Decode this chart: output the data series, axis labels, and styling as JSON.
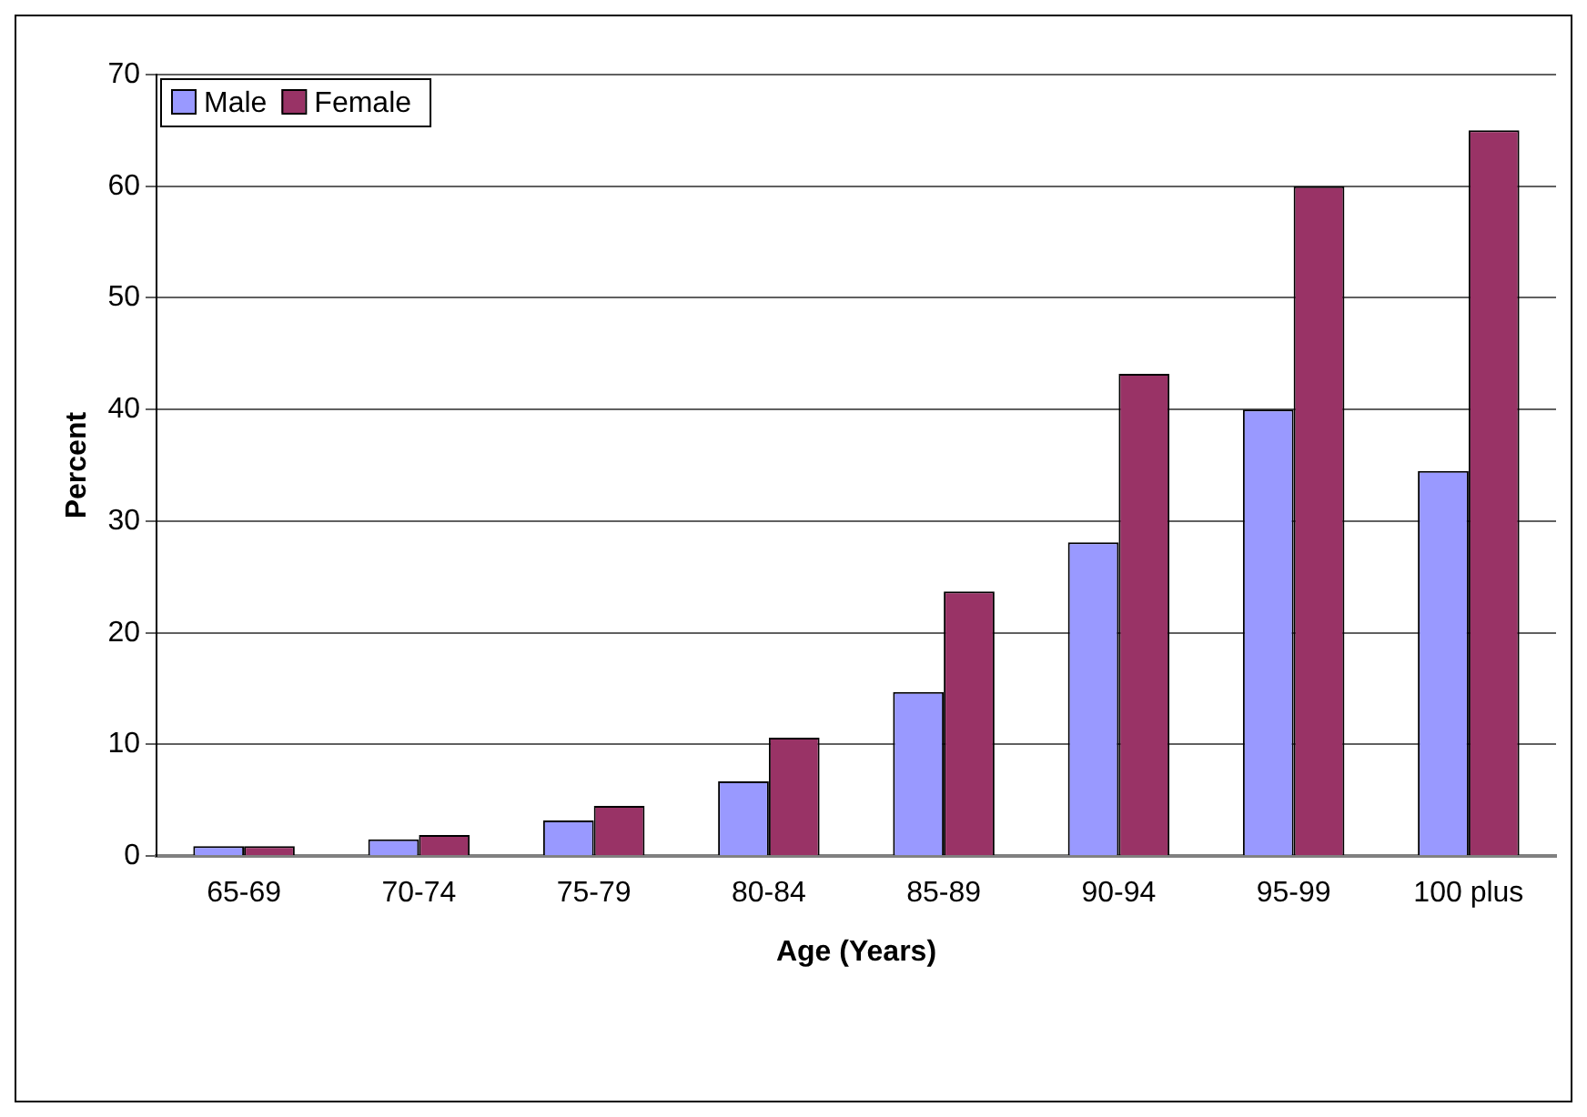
{
  "chart_data": {
    "type": "bar",
    "xlabel": "Age (Years)",
    "ylabel": "Percent",
    "categories": [
      "65-69",
      "70-74",
      "75-79",
      "80-84",
      "85-89",
      "90-94",
      "95-99",
      "100 plus"
    ],
    "series": [
      {
        "name": "Male",
        "color": "#9999ff",
        "values": [
          0.9,
          1.5,
          3.2,
          6.7,
          14.7,
          28.1,
          40.0,
          34.5
        ]
      },
      {
        "name": "Female",
        "color": "#993366",
        "values": [
          0.9,
          1.9,
          4.5,
          10.6,
          23.7,
          43.2,
          60.0,
          65.0
        ]
      }
    ],
    "ylim": [
      0,
      70
    ],
    "yticks": [
      0,
      10,
      20,
      30,
      40,
      50,
      60,
      70
    ],
    "grid": "y",
    "legend": "top left"
  }
}
